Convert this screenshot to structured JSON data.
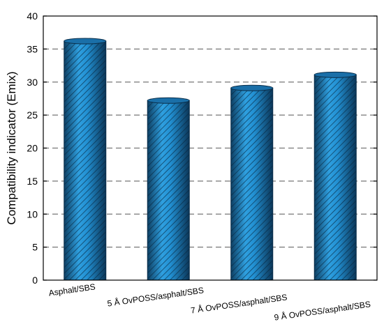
{
  "chart_data": {
    "type": "bar",
    "categories": [
      "Asphalt/SBS",
      "5 Å OvPOSS/asphalt/SBS",
      "7 Å OvPOSS/asphalt/SBS",
      "9 Å OvPOSS/asphalt/SBS"
    ],
    "values": [
      36.2,
      27.2,
      29.1,
      31.1
    ],
    "title": "",
    "xlabel": "",
    "ylabel": "Compatibility indicator (Emix)",
    "ylim": [
      0,
      40
    ],
    "yticks": [
      0,
      5,
      10,
      15,
      20,
      25,
      30,
      35,
      40
    ],
    "grid": "horizontal dashed",
    "legend": "none",
    "bar_color": "#1f7fc0",
    "bar_style": "cylinder with diagonal hatching"
  }
}
